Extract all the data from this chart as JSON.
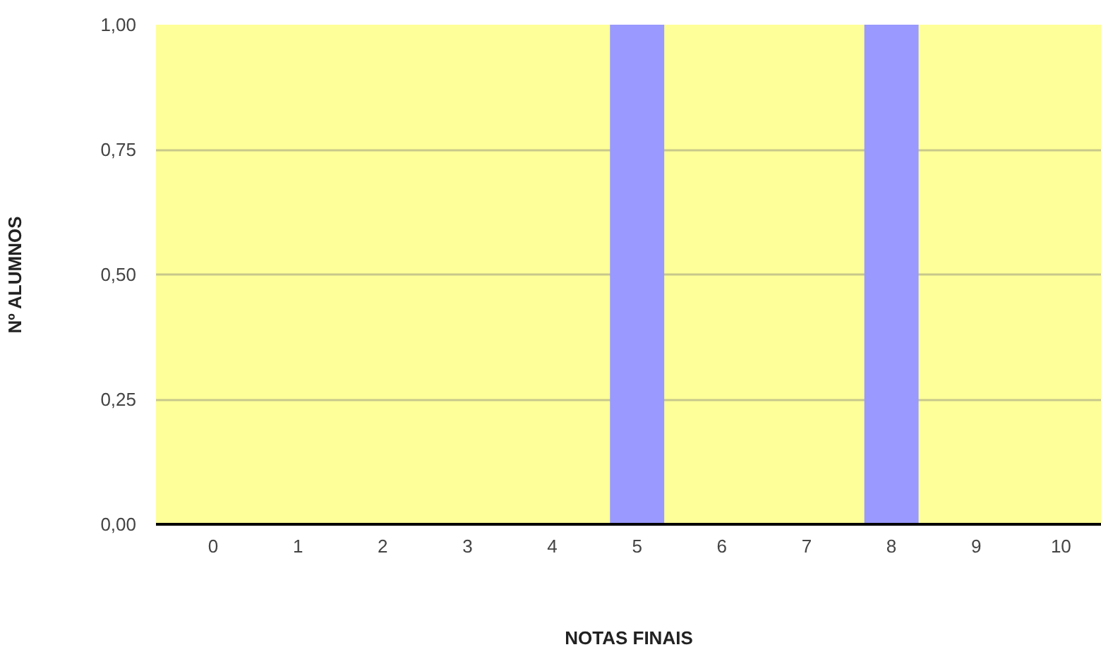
{
  "chart_data": {
    "type": "bar",
    "xlabel": "NOTAS FINAIS",
    "ylabel": "Nº ALUMNOS",
    "categories": [
      "0",
      "1",
      "2",
      "3",
      "4",
      "5",
      "6",
      "7",
      "8",
      "9",
      "10"
    ],
    "values": [
      0,
      0,
      0,
      0,
      0,
      1,
      0,
      0,
      1,
      0,
      0
    ],
    "color": "#9999ff",
    "ylim": [
      0,
      1
    ],
    "yticks": [
      {
        "value": 0,
        "label": "0,00"
      },
      {
        "value": 0.25,
        "label": "0,25"
      },
      {
        "value": 0.5,
        "label": "0,50"
      },
      {
        "value": 0.75,
        "label": "0,75"
      },
      {
        "value": 1,
        "label": "1,00"
      }
    ],
    "grid": "y"
  }
}
